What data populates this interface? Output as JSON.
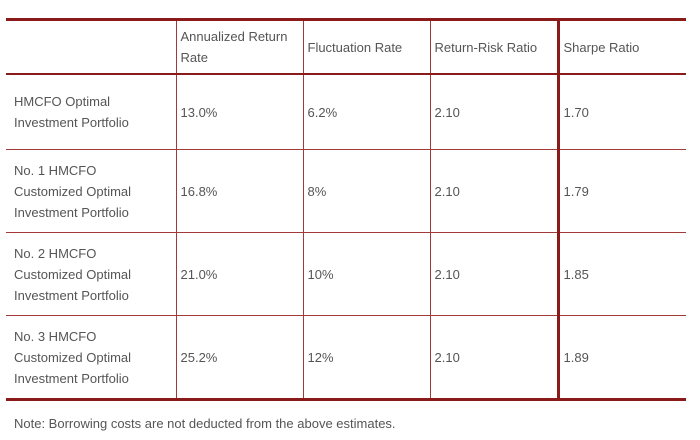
{
  "table": {
    "headers": [
      "",
      "Annualized Return Rate",
      "Fluctuation Rate",
      "Return-Risk Ratio",
      "Sharpe Ratio"
    ],
    "rows": [
      [
        "HMCFO Optimal Investment Portfolio",
        "13.0%",
        "6.2%",
        "2.10",
        "1.70"
      ],
      [
        "No. 1 HMCFO Customized Optimal Investment Portfolio",
        "16.8%",
        "8%",
        "2.10",
        "1.79"
      ],
      [
        "No. 2 HMCFO Customized Optimal Investment Portfolio",
        "21.0%",
        "10%",
        "2.10",
        "1.85"
      ],
      [
        "No. 3 HMCFO Customized Optimal Investment Portfolio",
        "25.2%",
        "12%",
        "2.10",
        "1.89"
      ]
    ]
  },
  "note": "Note: Borrowing costs are not deducted from the above estimates.",
  "colors": {
    "border_dark": "#8b1a1a",
    "border_light": "#a33a3a",
    "text": "#555555"
  }
}
